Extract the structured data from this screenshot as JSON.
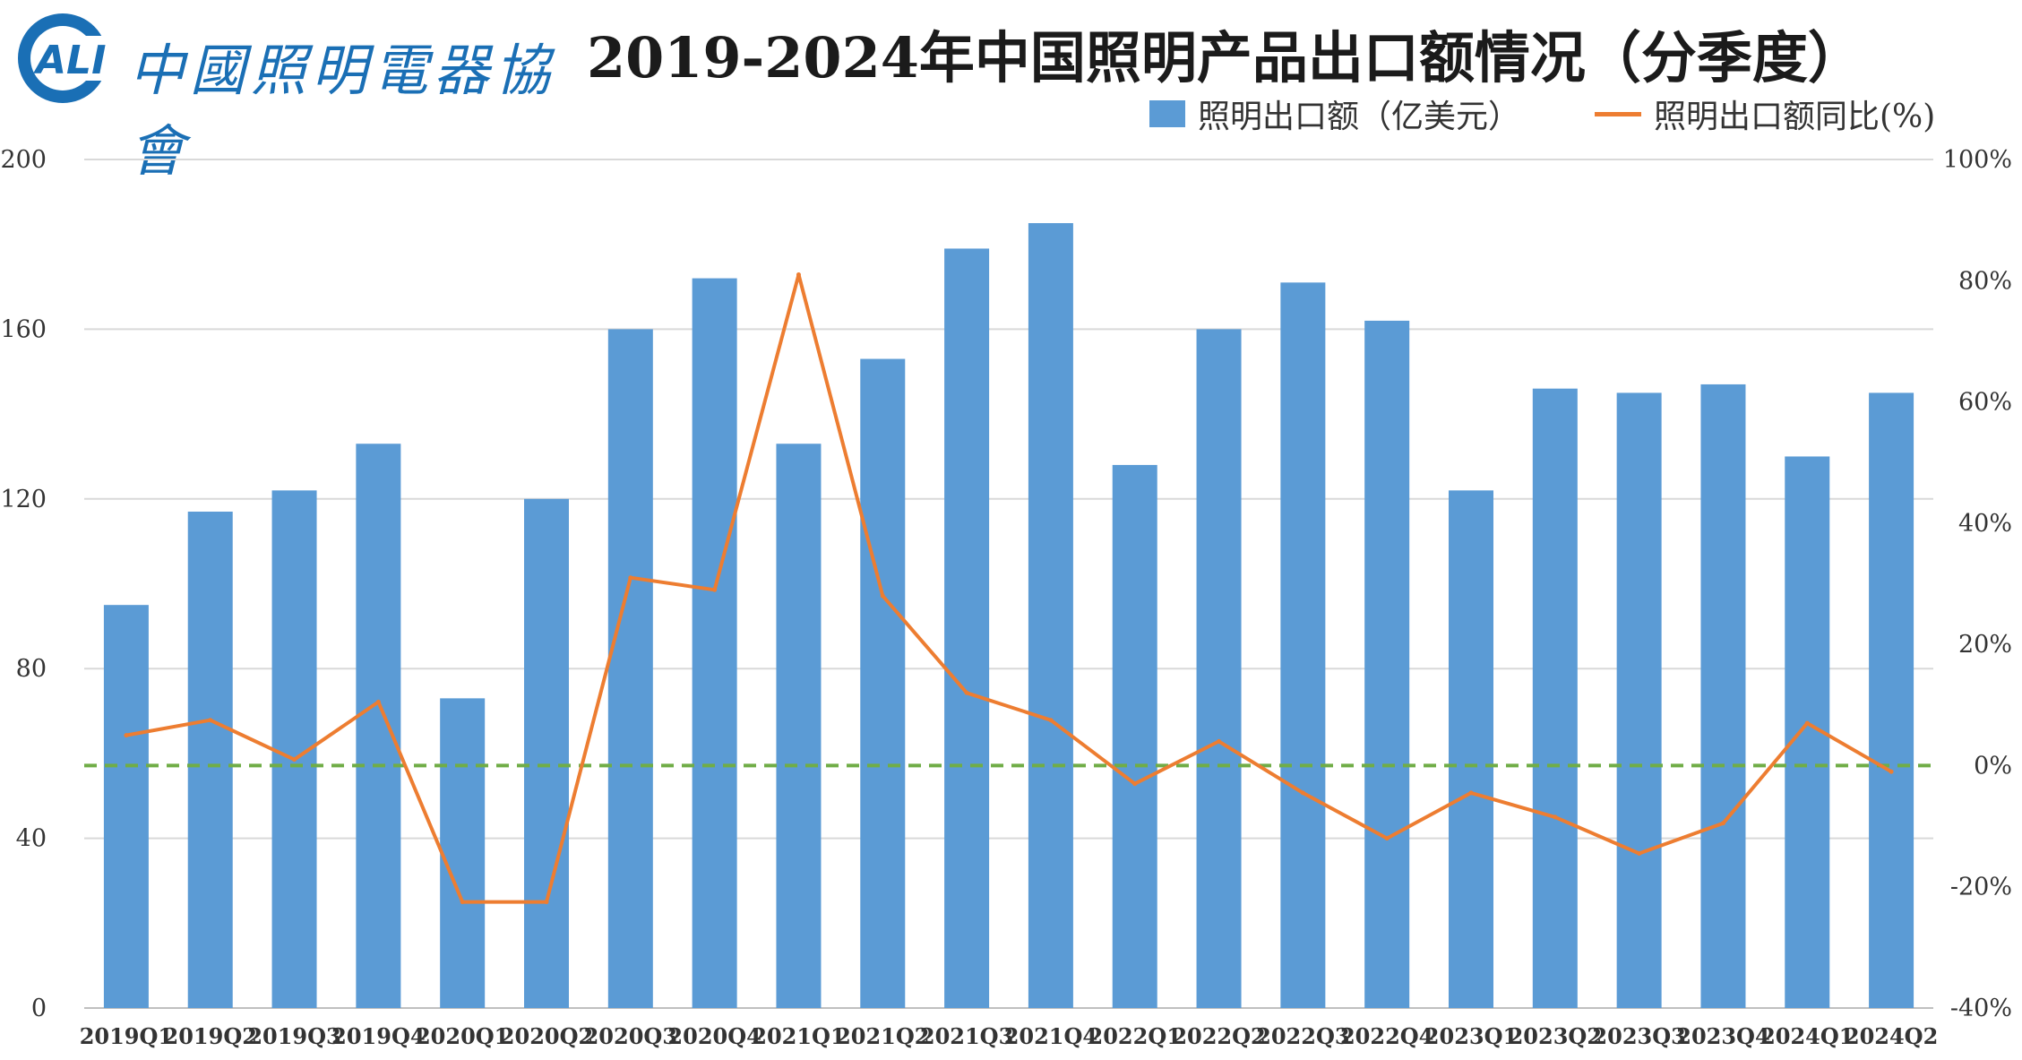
{
  "logo": {
    "abbr": "ALI",
    "name": "中國照明電器協會"
  },
  "chart_data": {
    "type": "bar",
    "title": "2019-2024年中国照明产品出口额情况（分季度）",
    "categories": [
      "2019Q1",
      "2019Q2",
      "2019Q3",
      "2019Q4",
      "2020Q1",
      "2020Q2",
      "2020Q3",
      "2020Q4",
      "2021Q1",
      "2021Q2",
      "2021Q3",
      "2021Q4",
      "2022Q1",
      "2022Q2",
      "2022Q3",
      "2022Q4",
      "2023Q1",
      "2023Q2",
      "2023Q3",
      "2023Q4",
      "2024Q1",
      "2024Q2"
    ],
    "series": [
      {
        "name": "照明出口额（亿美元）",
        "type": "bar",
        "axis": "left",
        "color": "#5b9bd5",
        "values": [
          95,
          117,
          122,
          133,
          73,
          120,
          160,
          172,
          133,
          153,
          179,
          185,
          128,
          160,
          171,
          162,
          122,
          146,
          145,
          147,
          130,
          145
        ]
      },
      {
        "name": "照明出口额同比(%)",
        "type": "line",
        "axis": "right",
        "color": "#ed7d31",
        "values": [
          5,
          7.5,
          1,
          10.5,
          -22.5,
          -22.5,
          31,
          29,
          81,
          28,
          12,
          7.5,
          -3,
          4,
          -4.5,
          -12,
          -4.5,
          -8.5,
          -14.5,
          -9.5,
          7,
          -1
        ]
      }
    ],
    "y_left": {
      "min": 0,
      "max": 200,
      "ticks": [
        0,
        40,
        80,
        120,
        160,
        200
      ]
    },
    "y_right": {
      "min": -40,
      "max": 100,
      "ticks": [
        "-40%",
        "-20%",
        "0%",
        "20%",
        "40%",
        "60%",
        "80%",
        "100%"
      ]
    },
    "zero_reference_line": {
      "value": 0,
      "axis": "right",
      "color": "#70ad47",
      "style": "dashed"
    },
    "grid": true,
    "legend_position": "top-right"
  }
}
